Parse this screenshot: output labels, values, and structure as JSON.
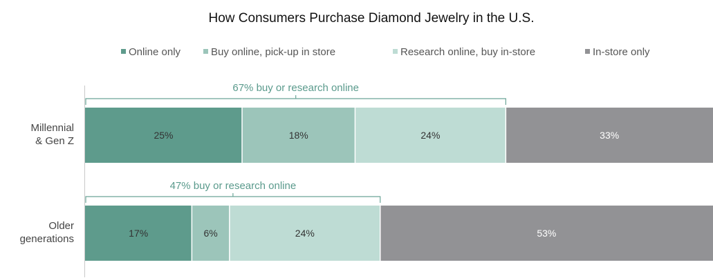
{
  "chart_data": {
    "type": "bar",
    "orientation": "horizontal",
    "stacked": true,
    "title": "How Consumers Purchase Diamond Jewelry in the U.S.",
    "categories": [
      "Millennial & Gen Z",
      "Older generations"
    ],
    "category_lines": [
      [
        "Millennial",
        "& Gen Z"
      ],
      [
        "Older",
        "generations"
      ]
    ],
    "series": [
      {
        "name": "Online only",
        "values": [
          25,
          17
        ],
        "labels": [
          "25%",
          "17%"
        ],
        "color": "#5e9b8c"
      },
      {
        "name": "Buy online, pick-up in store",
        "values": [
          18,
          6
        ],
        "labels": [
          "18%",
          "6%"
        ],
        "color": "#9cc5ba"
      },
      {
        "name": "Research online, buy in-store",
        "values": [
          24,
          24
        ],
        "labels": [
          "24%",
          "24%"
        ],
        "color": "#bedcd4"
      },
      {
        "name": "In-store only",
        "values": [
          33,
          53
        ],
        "labels": [
          "33%",
          "53%"
        ],
        "color": "#929295"
      }
    ],
    "label_colors": [
      "#333333",
      "#333333",
      "#333333",
      "#ffffff"
    ],
    "brackets": [
      {
        "category": "Millennial & Gen Z",
        "value": 67,
        "label": "67% buy or research online"
      },
      {
        "category": "Older generations",
        "value": 47,
        "label": "47% buy or research online"
      }
    ],
    "xlim": [
      0,
      100
    ],
    "legend_position": "top",
    "grid": false
  }
}
